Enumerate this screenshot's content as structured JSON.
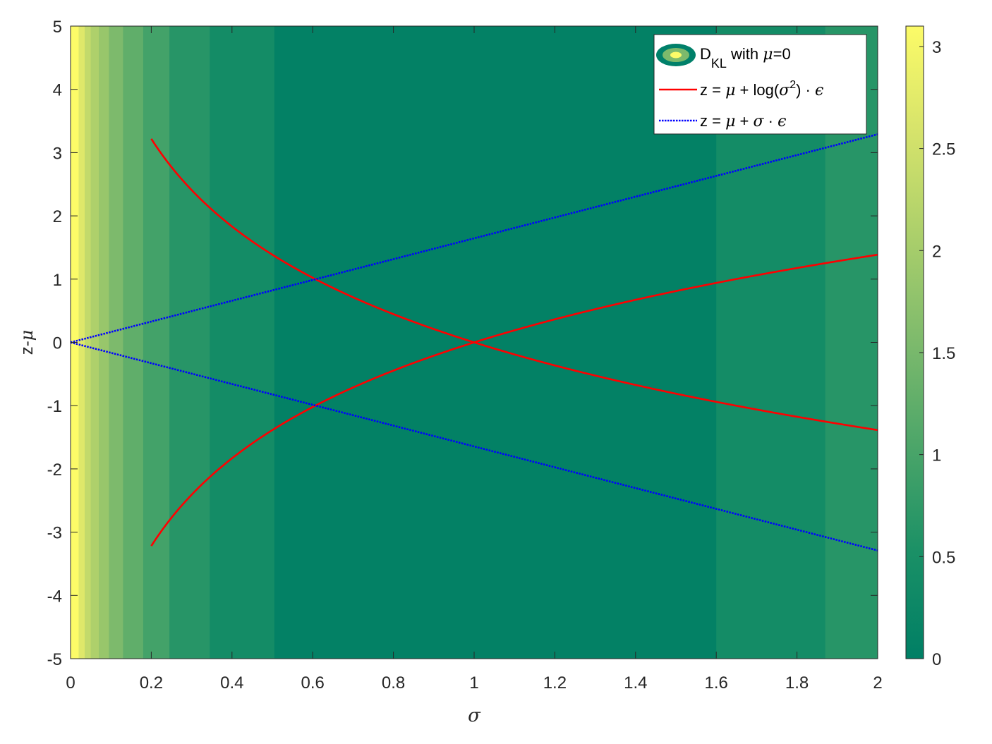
{
  "chart_data": {
    "type": "heatmap",
    "title": "",
    "xlabel": "σ",
    "ylabel": "z-μ",
    "xlim": [
      0,
      2
    ],
    "ylim": [
      -5,
      5
    ],
    "x_ticks": [
      "0",
      "0.2",
      "0.4",
      "0.6",
      "0.8",
      "1",
      "1.2",
      "1.4",
      "1.6",
      "1.8",
      "2"
    ],
    "y_ticks": [
      "-5",
      "-4",
      "-3",
      "-2",
      "-1",
      "0",
      "1",
      "2",
      "3",
      "4",
      "5"
    ],
    "colorbar": {
      "range": [
        0,
        3.1
      ],
      "ticks": [
        "0",
        "0.5",
        "1",
        "1.5",
        "2",
        "2.5",
        "3"
      ],
      "colors": [
        "#007f65",
        "#1a9066",
        "#4ba569",
        "#7dba6c",
        "#abcf6b",
        "#d6e36b",
        "#fcfb68"
      ]
    },
    "heatmap": {
      "description_key": "D_KL with mu=0",
      "bands": [
        {
          "x_from": 0.0,
          "x_to": 0.02,
          "value": 3.1
        },
        {
          "x_from": 0.02,
          "x_to": 0.035,
          "value": 2.7
        },
        {
          "x_from": 0.035,
          "x_to": 0.05,
          "value": 2.35
        },
        {
          "x_from": 0.05,
          "x_to": 0.07,
          "value": 2.1
        },
        {
          "x_from": 0.07,
          "x_to": 0.095,
          "value": 1.85
        },
        {
          "x_from": 0.095,
          "x_to": 0.13,
          "value": 1.55
        },
        {
          "x_from": 0.13,
          "x_to": 0.18,
          "value": 1.25
        },
        {
          "x_from": 0.18,
          "x_to": 0.245,
          "value": 0.95
        },
        {
          "x_from": 0.245,
          "x_to": 0.345,
          "value": 0.65
        },
        {
          "x_from": 0.345,
          "x_to": 0.505,
          "value": 0.4
        },
        {
          "x_from": 0.505,
          "x_to": 1.6,
          "value": 0.05
        },
        {
          "x_from": 1.6,
          "x_to": 1.87,
          "value": 0.4
        },
        {
          "x_from": 1.87,
          "x_to": 2.0,
          "value": 0.65
        }
      ]
    },
    "series": [
      {
        "name": "z = μ + log(σ²) · ϵ",
        "style": "solid",
        "color": "#ff0000",
        "formula": "±log(σ²)",
        "x_range": [
          0.22,
          2.0
        ]
      },
      {
        "name": "z = μ + σ · ϵ",
        "style": "dotted",
        "color": "#0000ff",
        "formula": "±1.64σ",
        "x_range": [
          0.0,
          2.0
        ]
      }
    ],
    "legend": {
      "placement": "top-right",
      "entries": [
        {
          "label": "D",
          "sub": "KL",
          "rest": " with ",
          "math": "μ",
          "tail": "=0"
        },
        {
          "label": "z = ",
          "math": "μ",
          "rest": " + log(",
          "math2": "σ",
          "sup": "2",
          "tail": ") · ",
          "math3": "ϵ"
        },
        {
          "label": "z = ",
          "math": "μ",
          "rest": " + ",
          "math2": "σ",
          "tail": " · ",
          "math3": "ϵ"
        }
      ]
    }
  }
}
